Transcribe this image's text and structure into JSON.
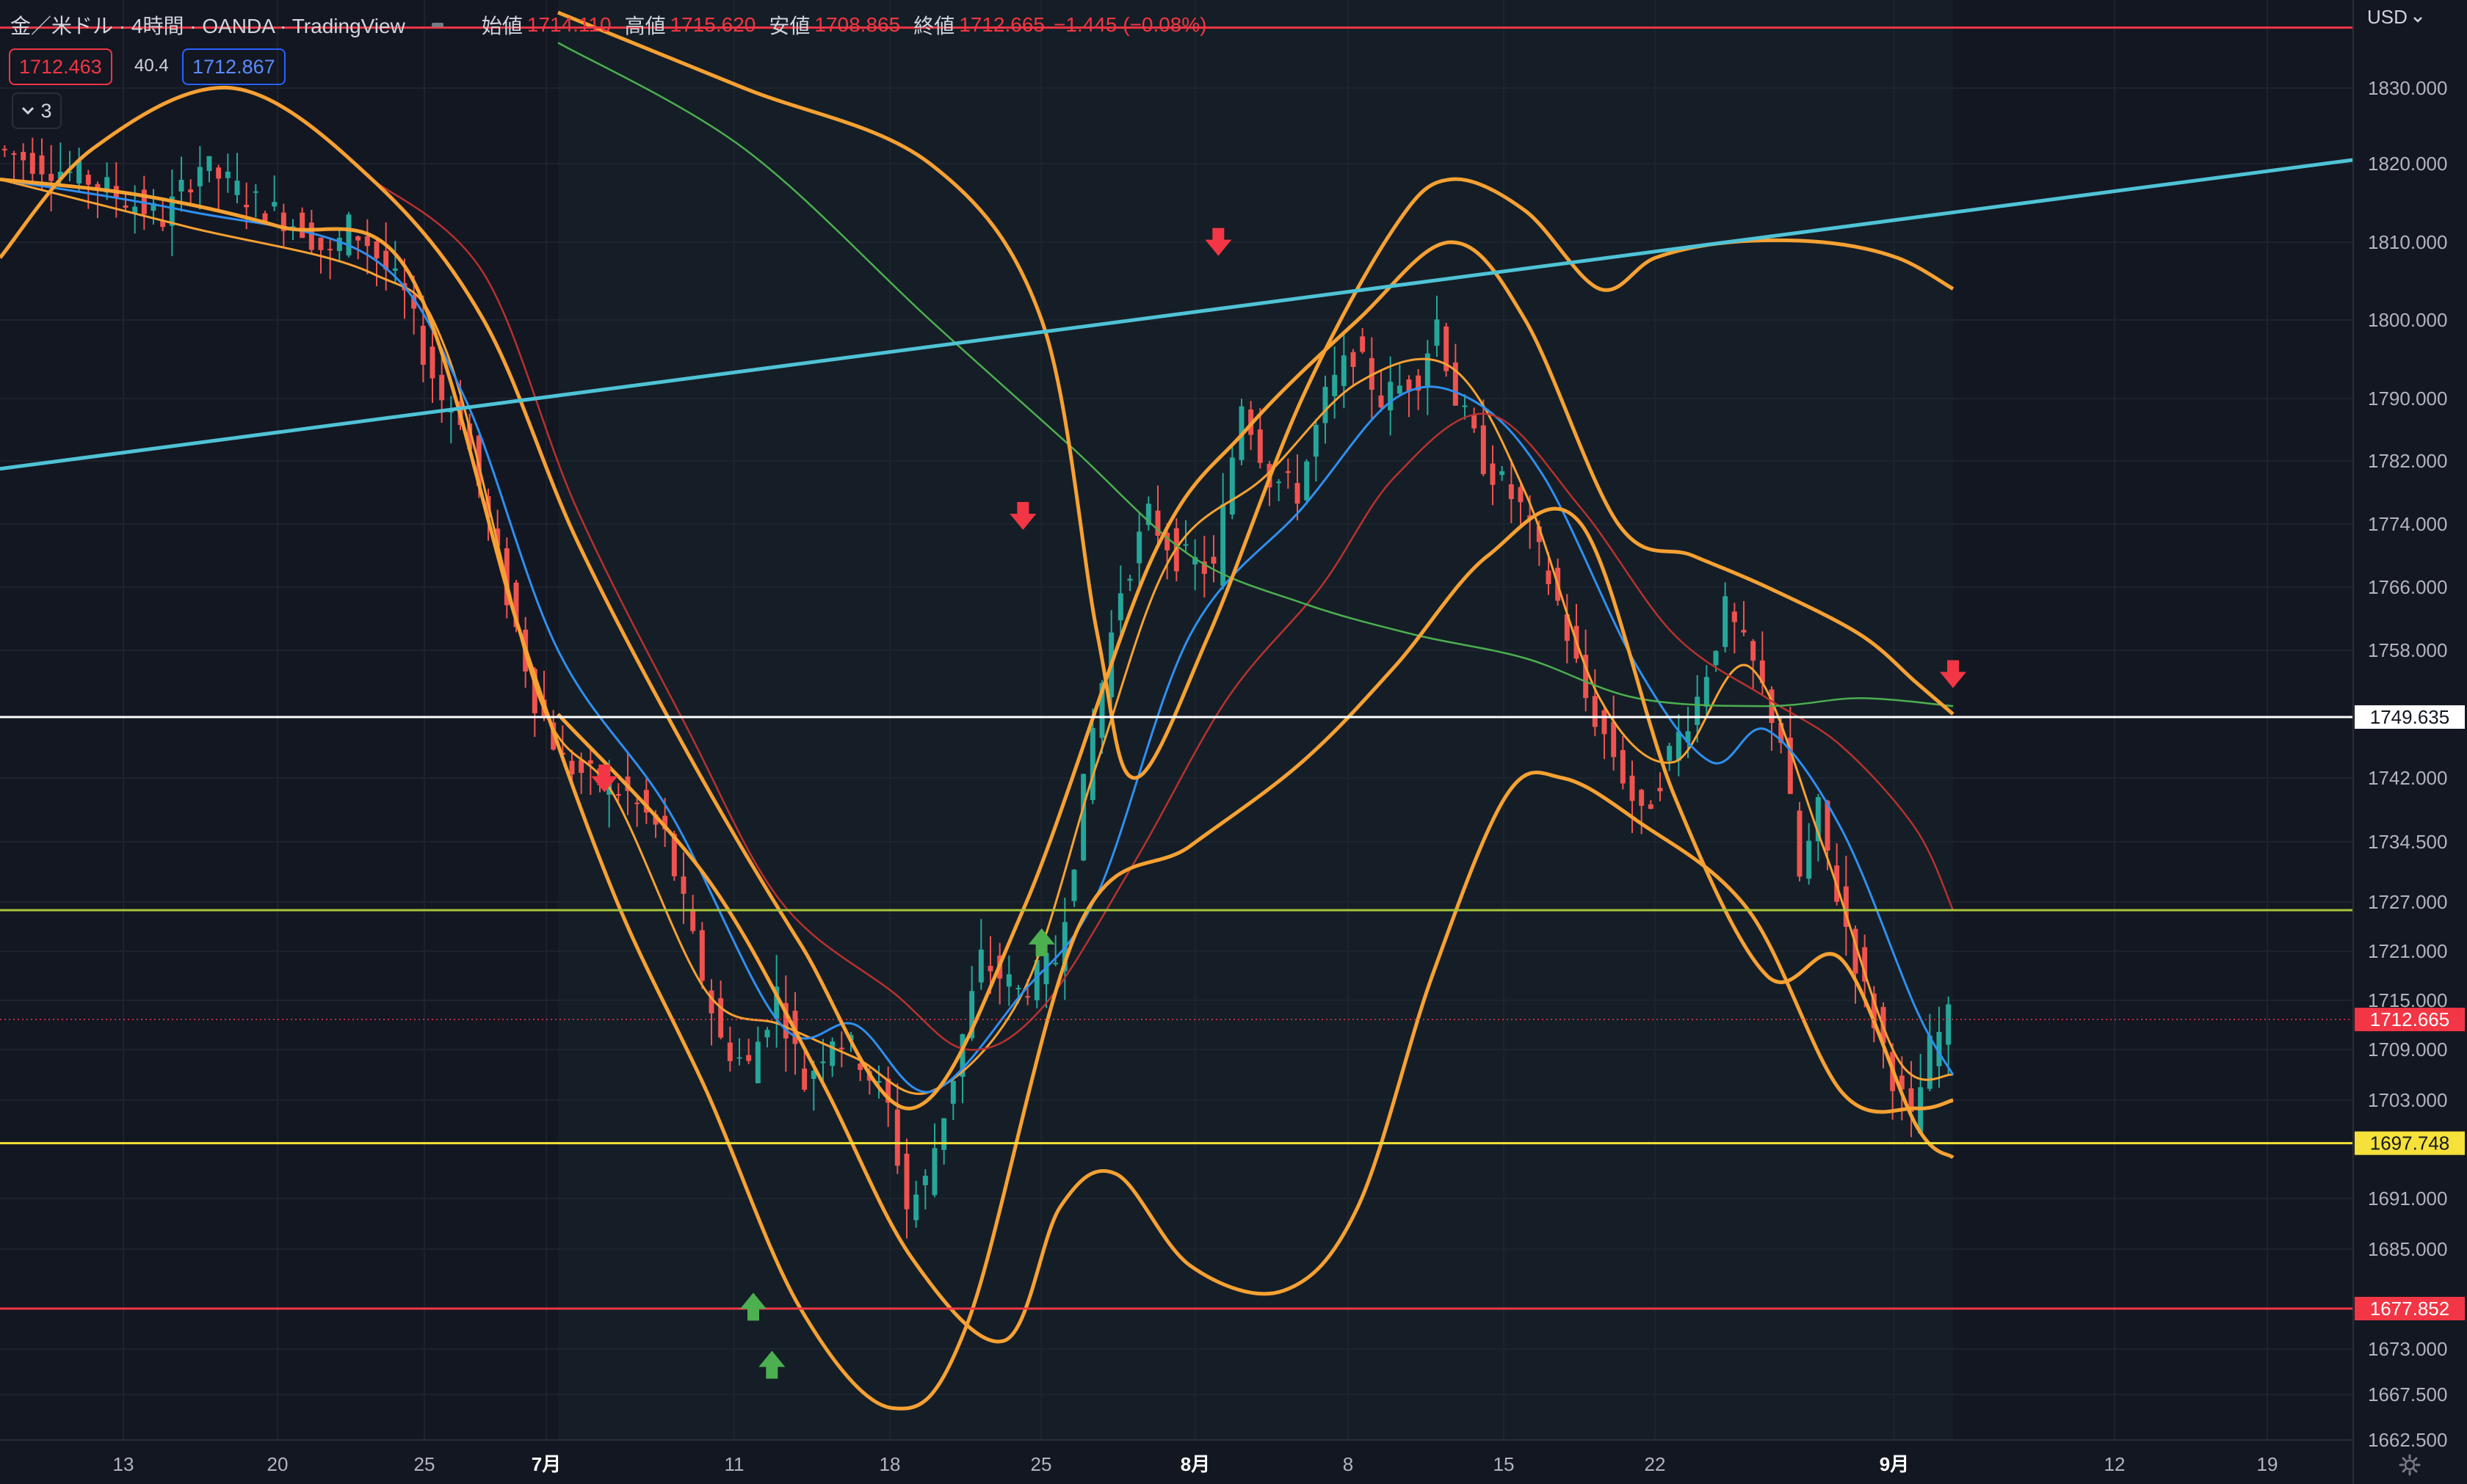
{
  "header": {
    "symbol_title": "金／米ドル · 4時間 · OANDA · TradingView",
    "open_label": "始値",
    "open_value": "1714.110",
    "high_label": "高値",
    "high_value": "1715.620",
    "low_label": "安値",
    "low_value": "1708.865",
    "close_label": "終値",
    "close_value": "1712.665",
    "change_value": "−1.445 (−0.08%)"
  },
  "bid_badge": "1712.463",
  "spread_value": "40.4",
  "ask_badge": "1712.867",
  "indicator_toggle": {
    "icon": "chevron-down-icon",
    "count": "3"
  },
  "currency_selector": "USD",
  "settings_icon": "gear-icon",
  "colors": {
    "background": "#131722",
    "grid": "#1e222d",
    "up_candle": "#26a69a",
    "down_candle": "#ef5350",
    "bollinger": "#f7a133",
    "ema_blue": "#2f8ff0",
    "sma_red": "#b8312f",
    "sma_green": "#4caf50",
    "trendline": "#4fc3d6"
  },
  "chart_data": {
    "type": "candlestick",
    "instrument": "金／米ドル",
    "timeframe": "4時間",
    "ylim": [
      1662,
      1840
    ],
    "y_ticks": [
      "1830.000",
      "1820.000",
      "1810.000",
      "1800.000",
      "1790.000",
      "1782.000",
      "1774.000",
      "1766.000",
      "1758.000",
      "1742.000",
      "1734.500",
      "1727.000",
      "1721.000",
      "1715.000",
      "1709.000",
      "1703.000",
      "1691.000",
      "1685.000",
      "1673.000",
      "1667.500",
      "1662.500"
    ],
    "x_ticks": [
      "13",
      "20",
      "25",
      "7月",
      "11",
      "18",
      "25",
      "8月",
      "8",
      "15",
      "22",
      "9月",
      "12",
      "19"
    ],
    "x_ticks_bold": [
      "7月",
      "8月",
      "9月"
    ],
    "last_price": "1712.665",
    "horizontal_lines": [
      {
        "price": 1749.635,
        "label": "1749.635",
        "color": "#ffffff"
      },
      {
        "price": 1697.748,
        "label": "1697.748",
        "color": "#f5e13a"
      },
      {
        "price": 1677.852,
        "label": "1677.852",
        "color": "#f23645"
      },
      {
        "price": 1726.0,
        "label": "",
        "color": "#a8c43a"
      },
      {
        "price": 1838.0,
        "label": "",
        "color": "#f23645"
      }
    ],
    "price_path": [
      [
        0,
        1822
      ],
      [
        10,
        1818
      ],
      [
        18,
        1813
      ],
      [
        22,
        1820
      ],
      [
        28,
        1815
      ],
      [
        33,
        1812
      ],
      [
        36,
        1808
      ],
      [
        38,
        1812
      ],
      [
        40,
        1810
      ],
      [
        44,
        1803
      ],
      [
        46,
        1796
      ],
      [
        48,
        1790
      ],
      [
        50,
        1788
      ],
      [
        55,
        1765
      ],
      [
        58,
        1752
      ],
      [
        61,
        1744
      ],
      [
        64,
        1742
      ],
      [
        68,
        1740
      ],
      [
        72,
        1735
      ],
      [
        75,
        1722
      ],
      [
        78,
        1710
      ],
      [
        81,
        1707
      ],
      [
        84,
        1716
      ],
      [
        87,
        1705
      ],
      [
        90,
        1711
      ],
      [
        93,
        1708
      ],
      [
        96,
        1702
      ],
      [
        98,
        1690
      ],
      [
        100,
        1693
      ],
      [
        103,
        1706
      ],
      [
        106,
        1720
      ],
      [
        110,
        1716
      ],
      [
        114,
        1720
      ],
      [
        116,
        1733
      ],
      [
        118,
        1748
      ],
      [
        121,
        1766
      ],
      [
        124,
        1775
      ],
      [
        127,
        1770
      ],
      [
        131,
        1768
      ],
      [
        134,
        1790
      ],
      [
        137,
        1780
      ],
      [
        140,
        1778
      ],
      [
        143,
        1790
      ],
      [
        146,
        1796
      ],
      [
        149,
        1790
      ],
      [
        153,
        1793
      ],
      [
        155,
        1800
      ],
      [
        157,
        1790
      ],
      [
        160,
        1782
      ],
      [
        164,
        1776
      ],
      [
        168,
        1764
      ],
      [
        171,
        1752
      ],
      [
        174,
        1745
      ],
      [
        177,
        1737
      ],
      [
        180,
        1745
      ],
      [
        183,
        1752
      ],
      [
        186,
        1763
      ],
      [
        189,
        1756
      ],
      [
        192,
        1747
      ],
      [
        194,
        1730
      ],
      [
        196,
        1738
      ],
      [
        198,
        1728
      ],
      [
        201,
        1716
      ],
      [
        204,
        1706
      ],
      [
        206,
        1700
      ],
      [
        208,
        1709
      ],
      [
        210,
        1712.665
      ]
    ],
    "series": [
      {
        "name": "",
        "kind": "ema_fast",
        "color": "#f7a133",
        "points": [
          [
            0,
            1818
          ],
          [
            20,
            1812
          ],
          [
            40,
            1806
          ],
          [
            48,
            1796
          ],
          [
            58,
            1752
          ],
          [
            66,
            1740
          ],
          [
            76,
            1716
          ],
          [
            84,
            1712
          ],
          [
            92,
            1708
          ],
          [
            100,
            1704
          ],
          [
            110,
            1716
          ],
          [
            118,
            1744
          ],
          [
            126,
            1770
          ],
          [
            136,
            1780
          ],
          [
            146,
            1792
          ],
          [
            156,
            1794
          ],
          [
            164,
            1778
          ],
          [
            172,
            1752
          ],
          [
            180,
            1744
          ],
          [
            188,
            1756
          ],
          [
            196,
            1734
          ],
          [
            204,
            1708
          ],
          [
            210,
            1706
          ]
        ]
      },
      {
        "name": "",
        "kind": "ema_blue",
        "color": "#2f8ff0",
        "points": [
          [
            0,
            1818
          ],
          [
            20,
            1814
          ],
          [
            40,
            1808
          ],
          [
            50,
            1790
          ],
          [
            60,
            1758
          ],
          [
            72,
            1738
          ],
          [
            84,
            1712
          ],
          [
            92,
            1712
          ],
          [
            100,
            1704
          ],
          [
            110,
            1716
          ],
          [
            118,
            1728
          ],
          [
            128,
            1760
          ],
          [
            140,
            1776
          ],
          [
            150,
            1790
          ],
          [
            158,
            1790
          ],
          [
            166,
            1780
          ],
          [
            176,
            1756
          ],
          [
            184,
            1744
          ],
          [
            190,
            1748
          ],
          [
            198,
            1736
          ],
          [
            206,
            1714
          ],
          [
            210,
            1706
          ]
        ]
      },
      {
        "name": "",
        "kind": "sma_red",
        "color": "#b8312f",
        "points": [
          [
            40,
            1818
          ],
          [
            52,
            1806
          ],
          [
            62,
            1776
          ],
          [
            74,
            1748
          ],
          [
            84,
            1727
          ],
          [
            96,
            1716
          ],
          [
            104,
            1709
          ],
          [
            112,
            1714
          ],
          [
            122,
            1732
          ],
          [
            132,
            1752
          ],
          [
            142,
            1766
          ],
          [
            150,
            1780
          ],
          [
            160,
            1788
          ],
          [
            170,
            1776
          ],
          [
            180,
            1760
          ],
          [
            190,
            1752
          ],
          [
            198,
            1746
          ],
          [
            206,
            1736
          ],
          [
            210,
            1726
          ]
        ]
      },
      {
        "name": "",
        "kind": "sma_green",
        "color": "#4caf50",
        "points": [
          [
            60,
            1836
          ],
          [
            80,
            1822
          ],
          [
            100,
            1800
          ],
          [
            115,
            1784
          ],
          [
            128,
            1770
          ],
          [
            140,
            1764
          ],
          [
            152,
            1760
          ],
          [
            164,
            1757
          ],
          [
            176,
            1752
          ],
          [
            190,
            1751
          ],
          [
            200,
            1752
          ],
          [
            210,
            1751
          ]
        ]
      },
      {
        "name": "",
        "kind": "bollinger_inner_upper",
        "color": "#f7a133",
        "points": [
          [
            0,
            1808
          ],
          [
            10,
            1822
          ],
          [
            25,
            1830
          ],
          [
            40,
            1818
          ],
          [
            52,
            1800
          ],
          [
            62,
            1772
          ],
          [
            74,
            1745
          ],
          [
            86,
            1722
          ],
          [
            98,
            1702
          ],
          [
            110,
            1726
          ],
          [
            124,
            1770
          ],
          [
            134,
            1786
          ],
          [
            146,
            1800
          ],
          [
            156,
            1810
          ],
          [
            164,
            1800
          ],
          [
            174,
            1774
          ],
          [
            182,
            1770
          ],
          [
            190,
            1766
          ],
          [
            200,
            1760
          ],
          [
            206,
            1754
          ],
          [
            210,
            1750
          ]
        ]
      },
      {
        "name": "",
        "kind": "bollinger_inner_lower",
        "color": "#f7a133",
        "points": [
          [
            0,
            1818
          ],
          [
            15,
            1816
          ],
          [
            30,
            1812
          ],
          [
            44,
            1806
          ],
          [
            56,
            1760
          ],
          [
            66,
            1728
          ],
          [
            76,
            1704
          ],
          [
            86,
            1678
          ],
          [
            96,
            1666
          ],
          [
            104,
            1676
          ],
          [
            116,
            1724
          ],
          [
            128,
            1734
          ],
          [
            140,
            1744
          ],
          [
            150,
            1756
          ],
          [
            160,
            1770
          ],
          [
            170,
            1774
          ],
          [
            180,
            1740
          ],
          [
            190,
            1718
          ],
          [
            198,
            1720
          ],
          [
            206,
            1700
          ],
          [
            210,
            1696
          ]
        ]
      },
      {
        "name": "",
        "kind": "bollinger_outer_upper",
        "color": "#f7a133",
        "points": [
          [
            60,
            1840
          ],
          [
            80,
            1830
          ],
          [
            100,
            1820
          ],
          [
            112,
            1800
          ],
          [
            118,
            1760
          ],
          [
            122,
            1742
          ],
          [
            130,
            1760
          ],
          [
            140,
            1790
          ],
          [
            150,
            1812
          ],
          [
            156,
            1818
          ],
          [
            164,
            1814
          ],
          [
            172,
            1804
          ],
          [
            178,
            1808
          ],
          [
            186,
            1810
          ],
          [
            196,
            1810
          ],
          [
            204,
            1808
          ],
          [
            210,
            1804
          ]
        ]
      },
      {
        "name": "",
        "kind": "bollinger_outer_lower",
        "color": "#f7a133",
        "points": [
          [
            60,
            1750
          ],
          [
            76,
            1730
          ],
          [
            88,
            1706
          ],
          [
            98,
            1684
          ],
          [
            108,
            1674
          ],
          [
            114,
            1690
          ],
          [
            120,
            1694
          ],
          [
            128,
            1683
          ],
          [
            138,
            1680
          ],
          [
            146,
            1690
          ],
          [
            154,
            1718
          ],
          [
            162,
            1740
          ],
          [
            168,
            1742
          ],
          [
            176,
            1737
          ],
          [
            188,
            1726
          ],
          [
            198,
            1704
          ],
          [
            206,
            1702
          ],
          [
            210,
            1703
          ]
        ]
      }
    ],
    "trendline": {
      "from": [
        0,
        1781
      ],
      "to": [
        210,
        1820.5
      ],
      "color": "#4fc3d6"
    },
    "markers_down": [
      [
        65,
        1741
      ],
      [
        110,
        1774
      ],
      [
        131,
        1809
      ],
      [
        210,
        1754
      ]
    ],
    "markers_up": [
      [
        81,
        1678
      ],
      [
        83,
        1671
      ],
      [
        112,
        1722
      ]
    ]
  }
}
